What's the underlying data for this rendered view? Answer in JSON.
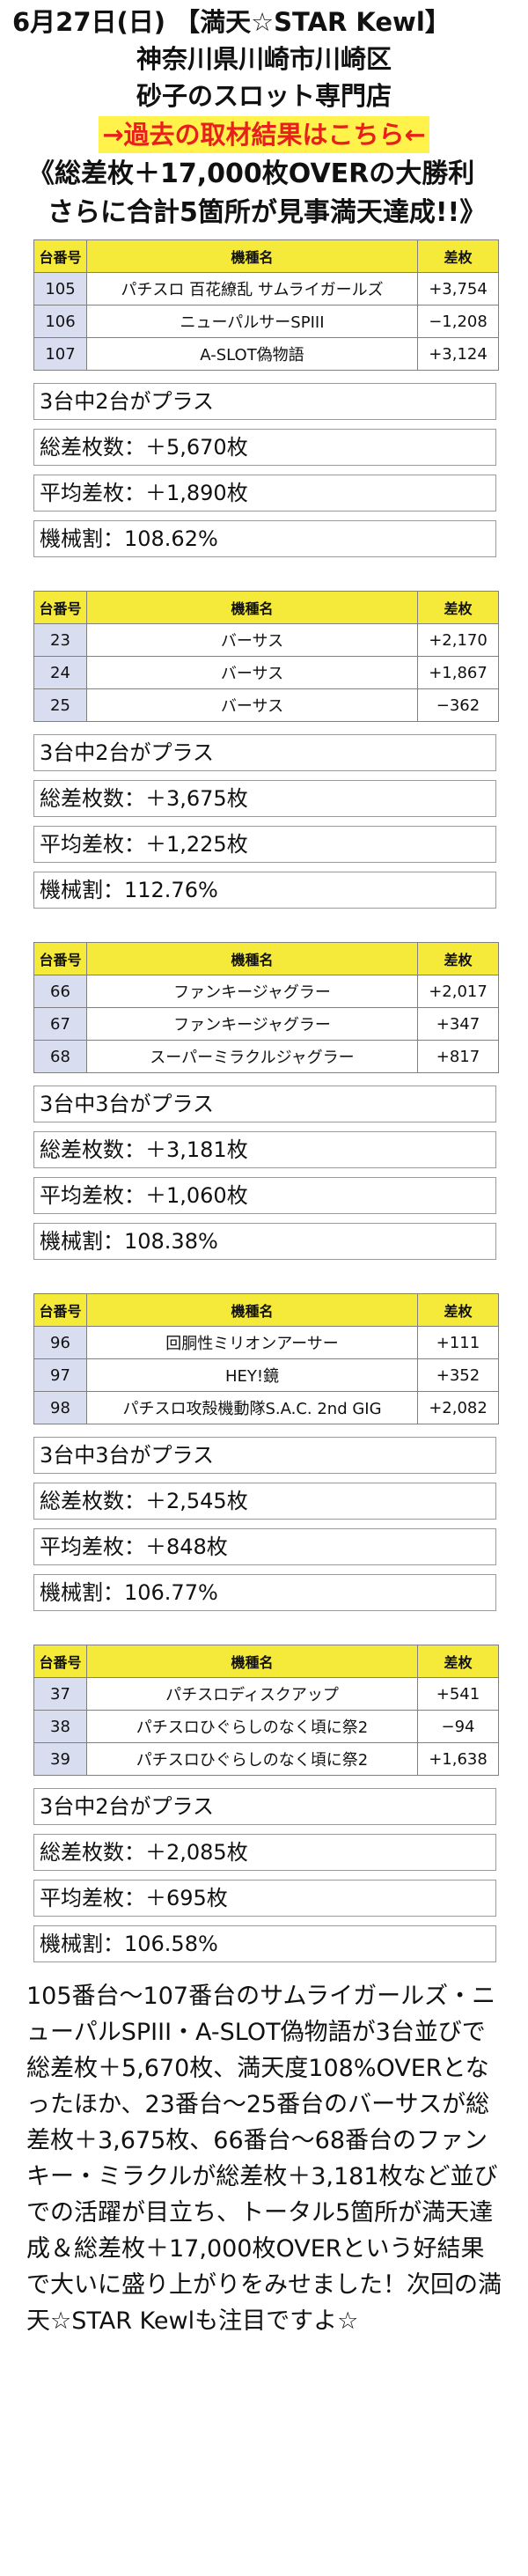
{
  "header": {
    "date_title": "6月27日(日) 【満天☆STAR Kewl】",
    "location": "神奈川県川崎市川崎区",
    "store": "砂子のスロット専門店",
    "past_link": "→過去の取材結果はこちら←"
  },
  "headline": {
    "line1": "《総差枚＋17,000枚OVERの大勝利",
    "line2": "さらに合計5箇所が見事満天達成!!》"
  },
  "table_headers": {
    "num": "台番号",
    "name": "機種名",
    "diff": "差枚"
  },
  "sections": [
    {
      "rows": [
        {
          "num": "105",
          "name": "パチスロ 百花繚乱 サムライガールズ",
          "diff": "+3,754"
        },
        {
          "num": "106",
          "name": "ニューパルサーSPIII",
          "diff": "−1,208"
        },
        {
          "num": "107",
          "name": "A-SLOT偽物語",
          "diff": "+3,124"
        }
      ],
      "stats": {
        "plus": "3台中2台がプラス",
        "total": "総差枚数：＋5,670枚",
        "avg": "平均差枚：＋1,890枚",
        "rate": "機械割：108.62%"
      }
    },
    {
      "rows": [
        {
          "num": "23",
          "name": "バーサス",
          "diff": "+2,170"
        },
        {
          "num": "24",
          "name": "バーサス",
          "diff": "+1,867"
        },
        {
          "num": "25",
          "name": "バーサス",
          "diff": "−362"
        }
      ],
      "stats": {
        "plus": "3台中2台がプラス",
        "total": "総差枚数：＋3,675枚",
        "avg": "平均差枚：＋1,225枚",
        "rate": "機械割：112.76%"
      }
    },
    {
      "rows": [
        {
          "num": "66",
          "name": "ファンキージャグラー",
          "diff": "+2,017"
        },
        {
          "num": "67",
          "name": "ファンキージャグラー",
          "diff": "+347"
        },
        {
          "num": "68",
          "name": "スーパーミラクルジャグラー",
          "diff": "+817"
        }
      ],
      "stats": {
        "plus": "3台中3台がプラス",
        "total": "総差枚数：＋3,181枚",
        "avg": "平均差枚：＋1,060枚",
        "rate": "機械割：108.38%"
      }
    },
    {
      "rows": [
        {
          "num": "96",
          "name": "回胴性ミリオンアーサー",
          "diff": "+111"
        },
        {
          "num": "97",
          "name": "HEY!鏡",
          "diff": "+352"
        },
        {
          "num": "98",
          "name": "パチスロ攻殻機動隊S.A.C. 2nd GIG",
          "diff": "+2,082"
        }
      ],
      "stats": {
        "plus": "3台中3台がプラス",
        "total": "総差枚数：＋2,545枚",
        "avg": "平均差枚：＋848枚",
        "rate": "機械割：106.77%"
      }
    },
    {
      "rows": [
        {
          "num": "37",
          "name": "パチスロディスクアップ",
          "diff": "+541"
        },
        {
          "num": "38",
          "name": "パチスロひぐらしのなく頃に祭2",
          "diff": "−94"
        },
        {
          "num": "39",
          "name": "パチスロひぐらしのなく頃に祭2",
          "diff": "+1,638"
        }
      ],
      "stats": {
        "plus": "3台中2台がプラス",
        "total": "総差枚数：＋2,085枚",
        "avg": "平均差枚：＋695枚",
        "rate": "機械割：106.58%"
      }
    }
  ],
  "summary": "105番台～107番台のサムライガールズ・ニューパルSPIII・A-SLOT偽物語が3台並びで総差枚＋5,670枚、満天度108%OVERとなったほか、23番台～25番台のバーサスが総差枚＋3,675枚、66番台～68番台のファンキー・ミラクルが総差枚＋3,181枚など並びでの活躍が目立ち、トータル5箇所が満天達成＆総差枚＋17,000枚OVERという好結果で大いに盛り上がりをみせました！次回の満天☆STAR Kewlも注目ですよ☆",
  "colors": {
    "header_cell_bg": "#f5ea3a",
    "num_cell_bg": "#d8deef",
    "link_text": "#e8201c",
    "link_bg": "#fff24a"
  }
}
